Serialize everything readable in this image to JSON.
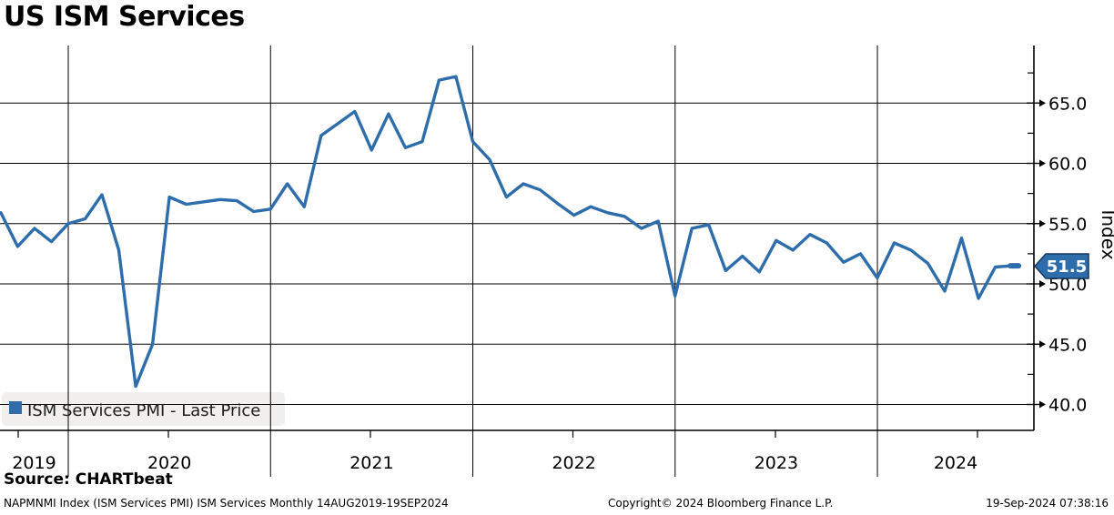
{
  "title": "US ISM Services",
  "legend": {
    "label": "ISM Services PMI - Last Price",
    "swatch_color": "#2e6dab"
  },
  "y_axis": {
    "label": "Index",
    "major_ticks": [
      65.0,
      60.0,
      55.0,
      50.0,
      45.0,
      40.0
    ],
    "minor_ticks": [
      67.5,
      62.5,
      57.5,
      52.5,
      47.5,
      42.5
    ]
  },
  "x_axis": {
    "year_labels": [
      "2019",
      "2020",
      "2021",
      "2022",
      "2023",
      "2024"
    ]
  },
  "last_price": {
    "value": "51.5",
    "fill": "#2e6dab",
    "border": "#17365c",
    "text_color": "#ffffff"
  },
  "footer": {
    "source": "Source: CHARTbeat",
    "description": "NAPMNMI Index (ISM Services PMI) ISM Services  Monthly 14AUG2019-19SEP2024",
    "copyright": "Copyright© 2024 Bloomberg Finance L.P.",
    "timestamp": "19-Sep-2024 07:38:16"
  },
  "chart_data": {
    "type": "line",
    "title": "US ISM Services",
    "ylabel": "Index",
    "ylim": [
      37.9,
      69.8
    ],
    "yticks": [
      40,
      45,
      50,
      55,
      60,
      65
    ],
    "grid": "both",
    "legend_position": "bottom-left",
    "frequency": "Monthly",
    "x_start": "Aug 2019",
    "x_end": "Aug 2024",
    "x_year_labels": [
      "2019",
      "2020",
      "2021",
      "2022",
      "2023",
      "2024"
    ],
    "last_price": 51.5,
    "line_color": "#2e6dab",
    "series": [
      {
        "name": "ISM Services PMI - Last Price",
        "color": "#2e6dab",
        "values": [
          55.9,
          53.1,
          54.6,
          53.5,
          55.0,
          55.4,
          57.4,
          52.8,
          41.5,
          45.0,
          57.2,
          56.6,
          56.8,
          57.0,
          56.9,
          56.0,
          56.2,
          58.3,
          56.4,
          62.3,
          63.3,
          64.3,
          61.1,
          64.1,
          61.3,
          61.8,
          66.9,
          67.2,
          61.8,
          60.3,
          57.2,
          58.3,
          57.8,
          56.7,
          55.7,
          56.4,
          55.9,
          55.6,
          54.6,
          55.2,
          49.0,
          54.6,
          54.9,
          51.1,
          52.3,
          51.0,
          53.6,
          52.8,
          54.1,
          53.4,
          51.8,
          52.5,
          50.5,
          53.4,
          52.8,
          51.7,
          49.4,
          53.8,
          48.8,
          51.4,
          51.5
        ]
      }
    ]
  }
}
